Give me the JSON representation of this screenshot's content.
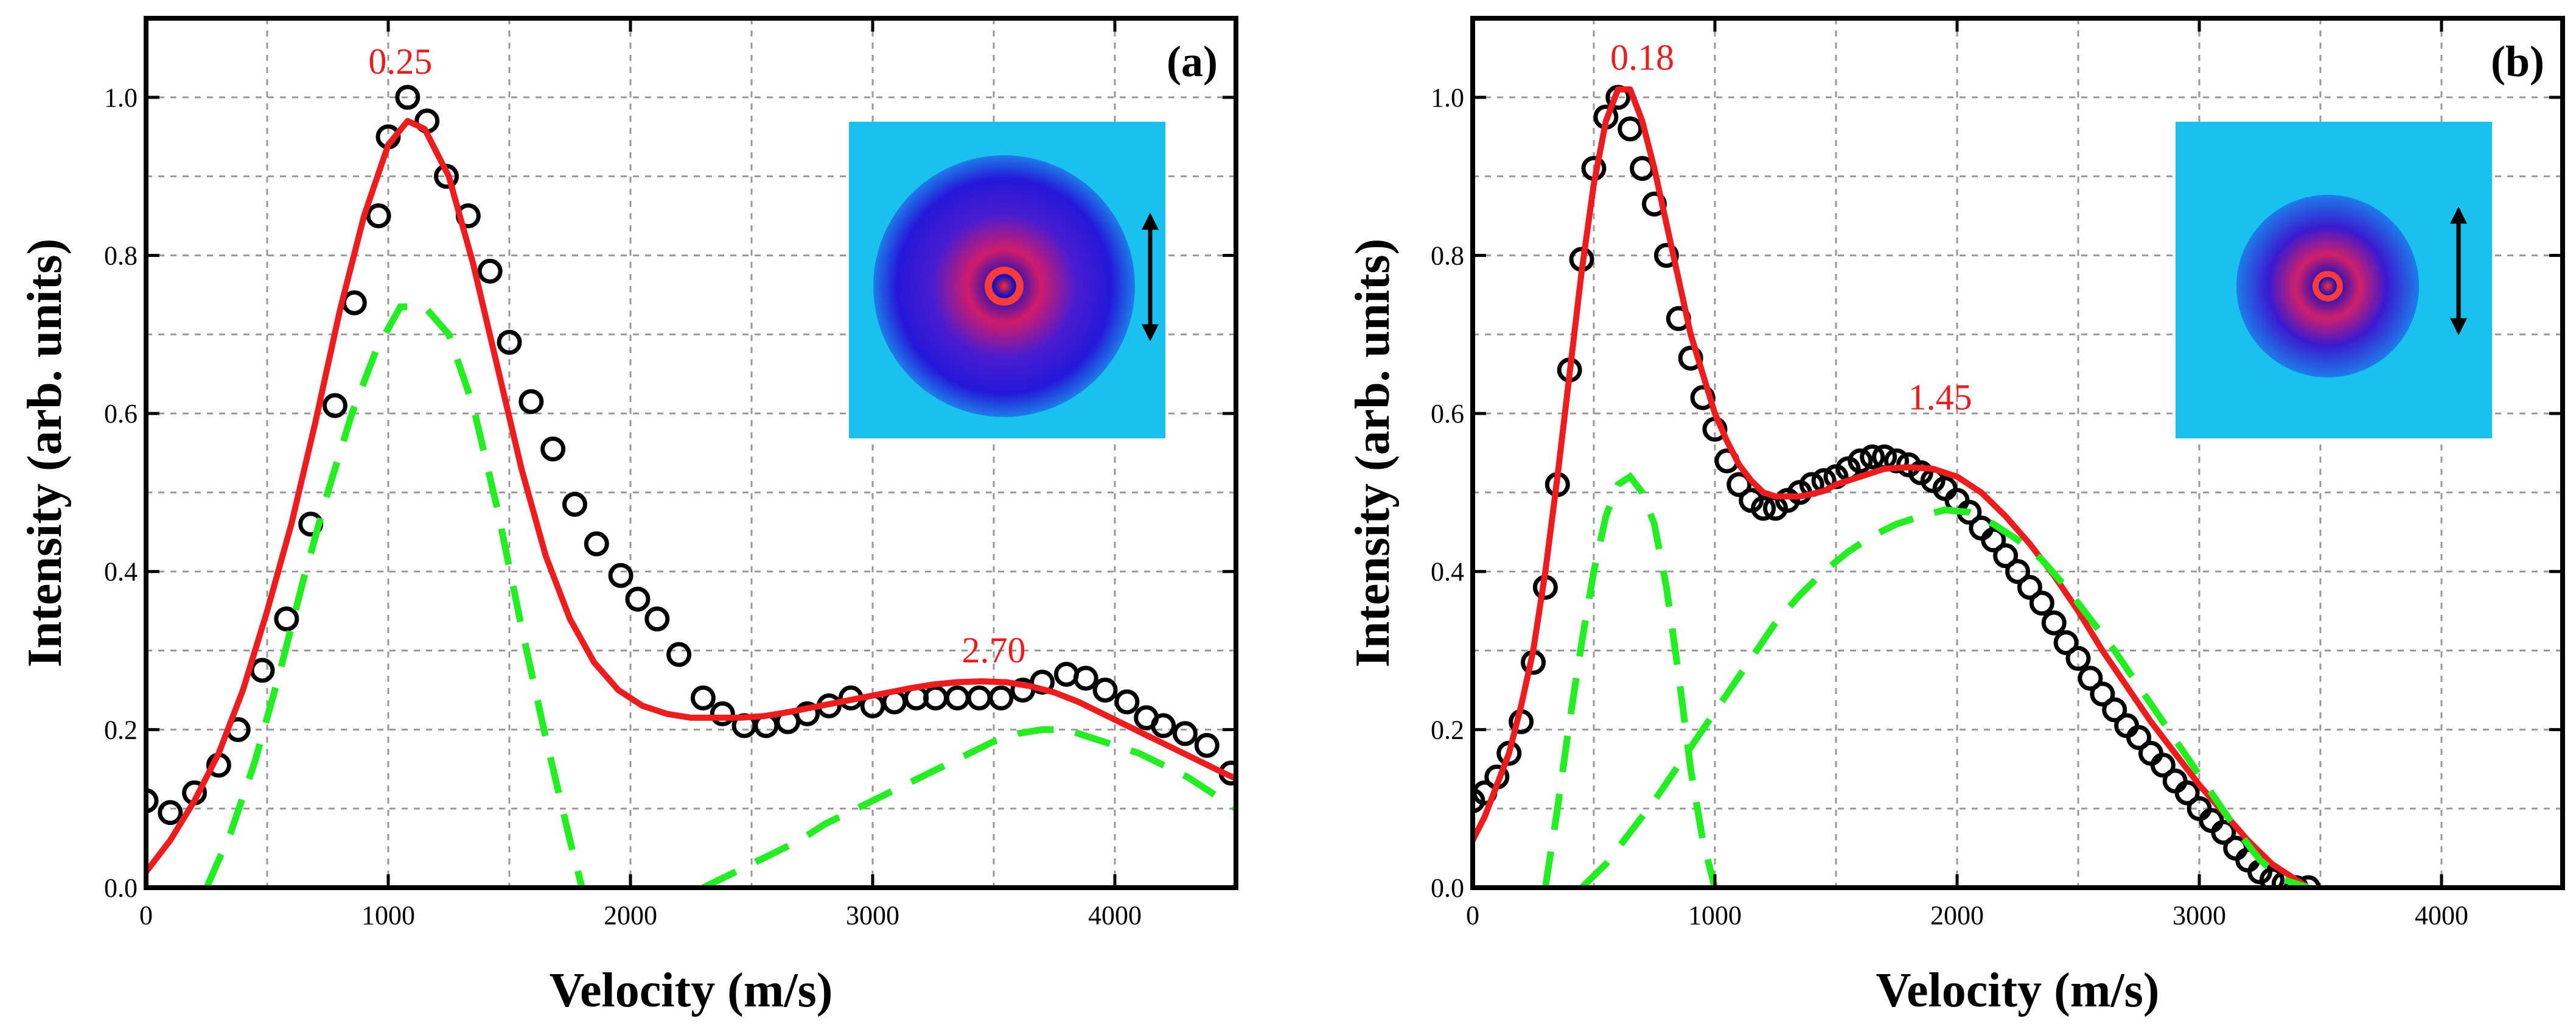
{
  "colors": {
    "fit": "#ee1c1c",
    "components": "#22ee22",
    "data": "#000000",
    "peak_label": "#ee1c1c",
    "grid": "#999999",
    "inset_background": "#19c2ee"
  },
  "chart_data": [
    {
      "type": "scatter",
      "panel_label": "(a)",
      "xlabel": "Velocity (m/s)",
      "ylabel": "Intensity (arb. units)",
      "xlim": [
        0,
        4500
      ],
      "ylim": [
        0,
        1.1
      ],
      "xticks": [
        "0",
        "1000",
        "2000",
        "3000",
        "4000"
      ],
      "yticks": [
        "0.0",
        "0.2",
        "0.4",
        "0.6",
        "0.8",
        "1.0"
      ],
      "grid": true,
      "inset": "velocity-map image with vertical double-headed arrow",
      "peak_labels": [
        {
          "text": "0.25",
          "x": 1050,
          "y": 1.03
        },
        {
          "text": "2.70",
          "x": 3500,
          "y": 0.285
        }
      ],
      "series": [
        {
          "name": "data",
          "style": "open-circles",
          "x": [
            0,
            100,
            200,
            300,
            380,
            480,
            580,
            680,
            780,
            860,
            960,
            1000,
            1080,
            1160,
            1240,
            1330,
            1420,
            1500,
            1590,
            1680,
            1770,
            1860,
            1960,
            2030,
            2110,
            2200,
            2300,
            2380,
            2470,
            2560,
            2650,
            2730,
            2820,
            2910,
            3000,
            3090,
            3180,
            3260,
            3350,
            3440,
            3530,
            3620,
            3700,
            3800,
            3880,
            3960,
            4050,
            4130,
            4200,
            4290,
            4380,
            4480
          ],
          "y": [
            0.11,
            0.095,
            0.12,
            0.155,
            0.2,
            0.275,
            0.34,
            0.46,
            0.61,
            0.74,
            0.85,
            0.95,
            1.0,
            0.97,
            0.9,
            0.85,
            0.78,
            0.69,
            0.615,
            0.555,
            0.485,
            0.435,
            0.395,
            0.365,
            0.34,
            0.295,
            0.24,
            0.22,
            0.205,
            0.205,
            0.21,
            0.22,
            0.23,
            0.24,
            0.23,
            0.235,
            0.24,
            0.24,
            0.24,
            0.24,
            0.24,
            0.25,
            0.26,
            0.27,
            0.265,
            0.25,
            0.235,
            0.215,
            0.205,
            0.195,
            0.18,
            0.145
          ]
        },
        {
          "name": "fit",
          "style": "solid",
          "x": [
            0,
            100,
            200,
            300,
            400,
            500,
            600,
            700,
            800,
            900,
            1000,
            1080,
            1150,
            1250,
            1350,
            1450,
            1550,
            1650,
            1750,
            1850,
            1950,
            2050,
            2150,
            2250,
            2350,
            2450,
            2550,
            2650,
            2750,
            2850,
            2950,
            3050,
            3150,
            3250,
            3350,
            3450,
            3550,
            3650,
            3750,
            3850,
            3950,
            4050,
            4150,
            4250,
            4350,
            4450,
            4500
          ],
          "y": [
            0.02,
            0.06,
            0.11,
            0.17,
            0.25,
            0.35,
            0.46,
            0.59,
            0.73,
            0.85,
            0.94,
            0.97,
            0.96,
            0.9,
            0.79,
            0.66,
            0.53,
            0.42,
            0.34,
            0.285,
            0.25,
            0.23,
            0.22,
            0.215,
            0.215,
            0.215,
            0.217,
            0.222,
            0.228,
            0.234,
            0.24,
            0.246,
            0.252,
            0.257,
            0.26,
            0.261,
            0.26,
            0.255,
            0.247,
            0.235,
            0.22,
            0.205,
            0.19,
            0.175,
            0.16,
            0.145,
            0.138
          ]
        },
        {
          "name": "component-1",
          "style": "dashed",
          "x": [
            250,
            350,
            450,
            550,
            650,
            750,
            850,
            950,
            1050,
            1150,
            1250,
            1350,
            1450,
            1550,
            1650,
            1750,
            1800
          ],
          "y": [
            0.0,
            0.07,
            0.16,
            0.27,
            0.39,
            0.5,
            0.6,
            0.68,
            0.735,
            0.735,
            0.7,
            0.61,
            0.48,
            0.33,
            0.19,
            0.06,
            0.0
          ]
        },
        {
          "name": "component-2",
          "style": "dashed",
          "x": [
            2300,
            2400,
            2500,
            2600,
            2700,
            2800,
            2900,
            3000,
            3100,
            3200,
            3300,
            3400,
            3500,
            3600,
            3700,
            3800,
            3900,
            4000,
            4100,
            4200,
            4300,
            4400,
            4500
          ],
          "y": [
            0.0,
            0.015,
            0.03,
            0.045,
            0.06,
            0.08,
            0.095,
            0.11,
            0.125,
            0.14,
            0.155,
            0.17,
            0.185,
            0.195,
            0.2,
            0.2,
            0.19,
            0.18,
            0.17,
            0.155,
            0.14,
            0.12,
            0.1
          ]
        }
      ]
    },
    {
      "type": "scatter",
      "panel_label": "(b)",
      "xlabel": "Velocity (m/s)",
      "ylabel": "Intensity (arb. units)",
      "xlim": [
        0,
        4500
      ],
      "ylim": [
        0,
        1.1
      ],
      "xticks": [
        "0",
        "1000",
        "2000",
        "3000",
        "4000"
      ],
      "yticks": [
        "0.0",
        "0.2",
        "0.4",
        "0.6",
        "0.8",
        "1.0"
      ],
      "grid": true,
      "inset": "velocity-map image with vertical double-headed arrow",
      "peak_labels": [
        {
          "text": "0.18",
          "x": 700,
          "y": 1.035
        },
        {
          "text": "1.45",
          "x": 1930,
          "y": 0.605
        }
      ],
      "series": [
        {
          "name": "data",
          "style": "open-circles",
          "x": [
            0,
            50,
            100,
            150,
            200,
            250,
            300,
            350,
            400,
            450,
            500,
            550,
            600,
            650,
            700,
            750,
            800,
            850,
            900,
            950,
            1000,
            1050,
            1100,
            1150,
            1200,
            1250,
            1300,
            1350,
            1400,
            1450,
            1500,
            1550,
            1600,
            1650,
            1700,
            1750,
            1800,
            1850,
            1900,
            1950,
            2000,
            2050,
            2100,
            2150,
            2200,
            2250,
            2300,
            2350,
            2400,
            2450,
            2500,
            2550,
            2600,
            2650,
            2700,
            2750,
            2800,
            2850,
            2900,
            2950,
            3000,
            3050,
            3100,
            3150,
            3200,
            3250,
            3300,
            3350,
            3400,
            3450
          ],
          "y": [
            0.11,
            0.12,
            0.14,
            0.17,
            0.21,
            0.285,
            0.38,
            0.51,
            0.655,
            0.795,
            0.91,
            0.975,
            1.0,
            0.96,
            0.91,
            0.865,
            0.8,
            0.72,
            0.67,
            0.62,
            0.58,
            0.54,
            0.51,
            0.49,
            0.48,
            0.48,
            0.49,
            0.5,
            0.51,
            0.515,
            0.52,
            0.53,
            0.54,
            0.545,
            0.545,
            0.54,
            0.535,
            0.525,
            0.515,
            0.505,
            0.49,
            0.475,
            0.455,
            0.44,
            0.42,
            0.4,
            0.38,
            0.36,
            0.335,
            0.31,
            0.29,
            0.265,
            0.245,
            0.225,
            0.205,
            0.19,
            0.17,
            0.155,
            0.135,
            0.12,
            0.1,
            0.085,
            0.07,
            0.05,
            0.035,
            0.02,
            0.01,
            0.005,
            0.0,
            0.0
          ]
        },
        {
          "name": "fit",
          "style": "solid",
          "x": [
            0,
            50,
            100,
            150,
            200,
            250,
            300,
            350,
            400,
            450,
            500,
            550,
            600,
            650,
            700,
            750,
            800,
            850,
            900,
            950,
            1000,
            1050,
            1100,
            1150,
            1200,
            1250,
            1300,
            1350,
            1400,
            1450,
            1500,
            1600,
            1700,
            1800,
            1900,
            2000,
            2100,
            2200,
            2300,
            2400,
            2500,
            2600,
            2700,
            2800,
            2900,
            3000,
            3100,
            3200,
            3300,
            3400,
            3450
          ],
          "y": [
            0.06,
            0.09,
            0.13,
            0.17,
            0.23,
            0.3,
            0.4,
            0.52,
            0.65,
            0.78,
            0.89,
            0.97,
            1.01,
            1.01,
            0.97,
            0.91,
            0.84,
            0.77,
            0.7,
            0.65,
            0.6,
            0.565,
            0.535,
            0.515,
            0.5,
            0.495,
            0.495,
            0.495,
            0.498,
            0.502,
            0.51,
            0.52,
            0.53,
            0.532,
            0.53,
            0.52,
            0.5,
            0.47,
            0.435,
            0.395,
            0.35,
            0.3,
            0.255,
            0.21,
            0.17,
            0.13,
            0.095,
            0.06,
            0.03,
            0.01,
            0.0
          ]
        },
        {
          "name": "component-1",
          "style": "dashed",
          "x": [
            300,
            350,
            400,
            450,
            500,
            550,
            600,
            650,
            700,
            750,
            800,
            850,
            900,
            950,
            1000
          ],
          "y": [
            0.0,
            0.1,
            0.21,
            0.31,
            0.4,
            0.47,
            0.51,
            0.52,
            0.5,
            0.46,
            0.38,
            0.27,
            0.15,
            0.06,
            0.0
          ]
        },
        {
          "name": "component-2",
          "style": "dashed",
          "x": [
            450,
            550,
            650,
            750,
            850,
            950,
            1050,
            1150,
            1250,
            1350,
            1450,
            1550,
            1650,
            1750,
            1850,
            1950,
            2050,
            2150,
            2250,
            2350,
            2450,
            2550,
            2650,
            2750,
            2850,
            2950,
            3050,
            3150,
            3250,
            3350,
            3450
          ],
          "y": [
            0.0,
            0.03,
            0.07,
            0.11,
            0.155,
            0.2,
            0.245,
            0.29,
            0.335,
            0.37,
            0.4,
            0.425,
            0.445,
            0.46,
            0.47,
            0.478,
            0.475,
            0.46,
            0.44,
            0.415,
            0.38,
            0.34,
            0.3,
            0.255,
            0.21,
            0.165,
            0.12,
            0.075,
            0.035,
            0.01,
            0.0
          ]
        }
      ]
    }
  ]
}
